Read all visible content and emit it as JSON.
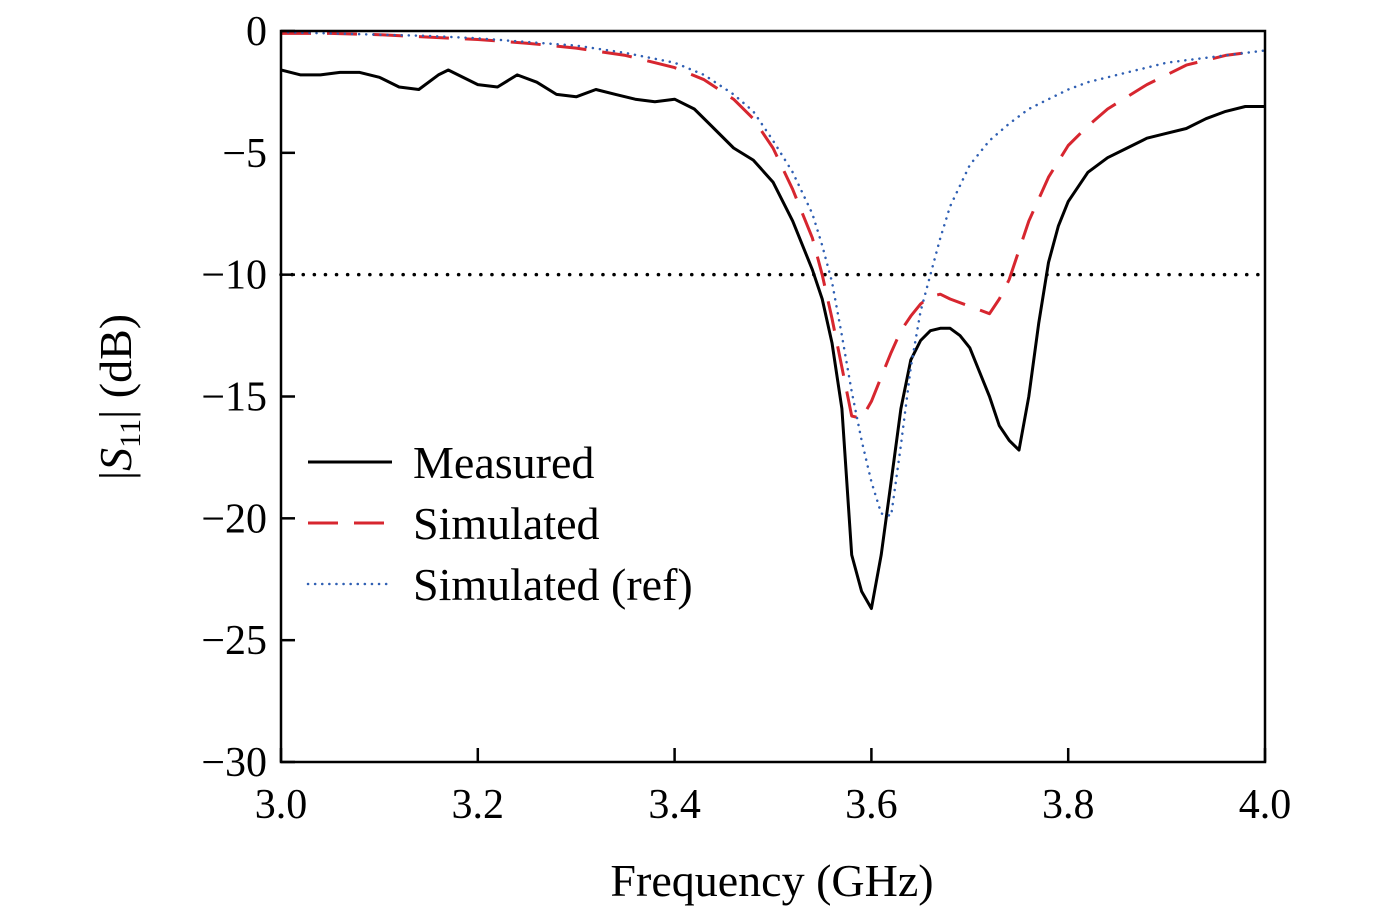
{
  "chart_data": {
    "type": "line",
    "title": "",
    "xlabel": "Frequency (GHz)",
    "ylabel": {
      "open": "|",
      "symbol": "S",
      "subscript": "11",
      "close": "| (dB)"
    },
    "xlim": [
      3.0,
      4.0
    ],
    "ylim": [
      -30,
      0
    ],
    "xticks": [
      3.0,
      3.2,
      3.4,
      3.6,
      3.8,
      4.0
    ],
    "xtick_labels": [
      "3.0",
      "3.2",
      "3.4",
      "3.6",
      "3.8",
      "4.0"
    ],
    "yticks": [
      0,
      -5,
      -10,
      -15,
      -20,
      -25,
      -30
    ],
    "ytick_labels": [
      "0",
      "−5",
      "−10",
      "−15",
      "−20",
      "−25",
      "−30"
    ],
    "grid": false,
    "legend_position": "lower-left",
    "reference_line": {
      "y": -10,
      "color": "#000000",
      "style": "dotted"
    },
    "series": [
      {
        "name": "Measured",
        "color": "#000000",
        "style": "solid",
        "x": [
          3.0,
          3.02,
          3.04,
          3.06,
          3.08,
          3.1,
          3.12,
          3.14,
          3.16,
          3.17,
          3.18,
          3.2,
          3.22,
          3.24,
          3.26,
          3.28,
          3.3,
          3.32,
          3.34,
          3.36,
          3.38,
          3.4,
          3.42,
          3.44,
          3.46,
          3.48,
          3.5,
          3.52,
          3.54,
          3.55,
          3.56,
          3.57,
          3.58,
          3.59,
          3.6,
          3.61,
          3.62,
          3.63,
          3.64,
          3.65,
          3.66,
          3.67,
          3.68,
          3.69,
          3.7,
          3.71,
          3.72,
          3.73,
          3.74,
          3.75,
          3.76,
          3.77,
          3.78,
          3.79,
          3.8,
          3.82,
          3.84,
          3.86,
          3.88,
          3.9,
          3.92,
          3.94,
          3.96,
          3.98,
          4.0
        ],
        "values": [
          -1.6,
          -1.8,
          -1.8,
          -1.7,
          -1.7,
          -1.9,
          -2.3,
          -2.4,
          -1.8,
          -1.6,
          -1.8,
          -2.2,
          -2.3,
          -1.8,
          -2.1,
          -2.6,
          -2.7,
          -2.4,
          -2.6,
          -2.8,
          -2.9,
          -2.8,
          -3.2,
          -4.0,
          -4.8,
          -5.3,
          -6.2,
          -7.8,
          -9.8,
          -11.0,
          -12.8,
          -15.5,
          -21.5,
          -23.0,
          -23.7,
          -21.5,
          -18.5,
          -15.5,
          -13.5,
          -12.7,
          -12.3,
          -12.2,
          -12.2,
          -12.5,
          -13.0,
          -14.0,
          -15.0,
          -16.2,
          -16.8,
          -17.2,
          -15.0,
          -12.0,
          -9.5,
          -8.0,
          -7.0,
          -5.8,
          -5.2,
          -4.8,
          -4.4,
          -4.2,
          -4.0,
          -3.6,
          -3.3,
          -3.1,
          -3.1
        ]
      },
      {
        "name": "Simulated",
        "color": "#d7262f",
        "style": "dashed",
        "x": [
          3.0,
          3.05,
          3.1,
          3.15,
          3.2,
          3.25,
          3.3,
          3.35,
          3.4,
          3.43,
          3.46,
          3.48,
          3.5,
          3.52,
          3.54,
          3.55,
          3.56,
          3.57,
          3.58,
          3.59,
          3.6,
          3.61,
          3.62,
          3.63,
          3.64,
          3.65,
          3.66,
          3.67,
          3.68,
          3.7,
          3.72,
          3.73,
          3.74,
          3.75,
          3.76,
          3.78,
          3.8,
          3.82,
          3.84,
          3.86,
          3.88,
          3.9,
          3.92,
          3.94,
          3.96,
          3.98
        ],
        "values": [
          -0.1,
          -0.1,
          -0.15,
          -0.25,
          -0.35,
          -0.5,
          -0.7,
          -1.0,
          -1.5,
          -2.0,
          -2.8,
          -3.6,
          -4.8,
          -6.5,
          -8.5,
          -10.0,
          -11.8,
          -13.8,
          -15.8,
          -15.9,
          -15.2,
          -14.2,
          -13.2,
          -12.3,
          -11.7,
          -11.2,
          -10.9,
          -10.8,
          -11.0,
          -11.3,
          -11.6,
          -11.0,
          -10.2,
          -9.0,
          -7.8,
          -6.0,
          -4.7,
          -3.9,
          -3.2,
          -2.7,
          -2.2,
          -1.8,
          -1.4,
          -1.2,
          -1.0,
          -0.9
        ]
      },
      {
        "name": "Simulated (ref)",
        "color": "#2f5fb3",
        "style": "dotted",
        "x": [
          3.0,
          3.05,
          3.1,
          3.15,
          3.2,
          3.25,
          3.3,
          3.35,
          3.4,
          3.43,
          3.46,
          3.48,
          3.5,
          3.52,
          3.54,
          3.55,
          3.56,
          3.57,
          3.58,
          3.59,
          3.6,
          3.61,
          3.62,
          3.63,
          3.64,
          3.65,
          3.66,
          3.67,
          3.68,
          3.7,
          3.72,
          3.74,
          3.76,
          3.78,
          3.8,
          3.82,
          3.84,
          3.86,
          3.88,
          3.9,
          3.92,
          3.94,
          3.96,
          3.98,
          4.0
        ],
        "values": [
          -0.05,
          -0.1,
          -0.15,
          -0.2,
          -0.3,
          -0.45,
          -0.6,
          -0.9,
          -1.3,
          -1.8,
          -2.6,
          -3.3,
          -4.5,
          -5.8,
          -7.5,
          -8.8,
          -10.3,
          -12.5,
          -14.8,
          -16.8,
          -18.5,
          -19.8,
          -19.9,
          -17.0,
          -13.8,
          -11.5,
          -10.0,
          -8.5,
          -7.2,
          -5.5,
          -4.5,
          -3.8,
          -3.2,
          -2.8,
          -2.4,
          -2.1,
          -1.9,
          -1.7,
          -1.5,
          -1.3,
          -1.2,
          -1.1,
          -1.0,
          -0.9,
          -0.8
        ]
      }
    ]
  }
}
